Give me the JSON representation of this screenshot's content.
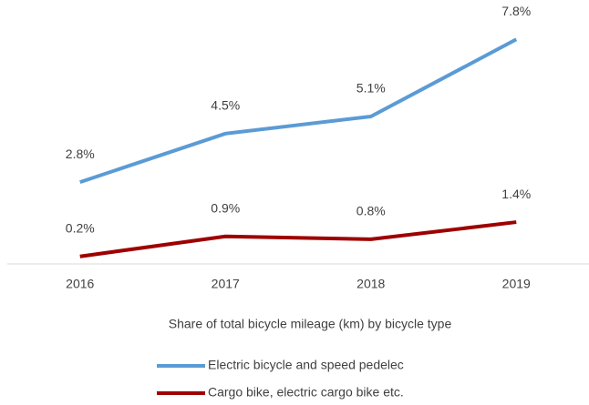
{
  "chart_data": {
    "type": "line",
    "x_label": "Share of total bicycle mileage (km) by bicycle type",
    "categories": [
      "2016",
      "2017",
      "2018",
      "2019"
    ],
    "series": [
      {
        "name": "Electric bicycle and speed pedelec",
        "color": "#5b9bd5",
        "values": [
          2.8,
          4.5,
          5.1,
          7.8
        ],
        "value_labels": [
          "2.8%",
          "4.5%",
          "5.1%",
          "7.8%"
        ]
      },
      {
        "name": "Cargo bike, electric cargo bike etc.",
        "color": "#9e0000",
        "values": [
          0.2,
          0.9,
          0.8,
          1.4
        ],
        "value_labels": [
          "0.2%",
          "0.9%",
          "0.8%",
          "1.4%"
        ]
      }
    ],
    "ylim": [
      0,
      8
    ],
    "legend": "bottom"
  }
}
